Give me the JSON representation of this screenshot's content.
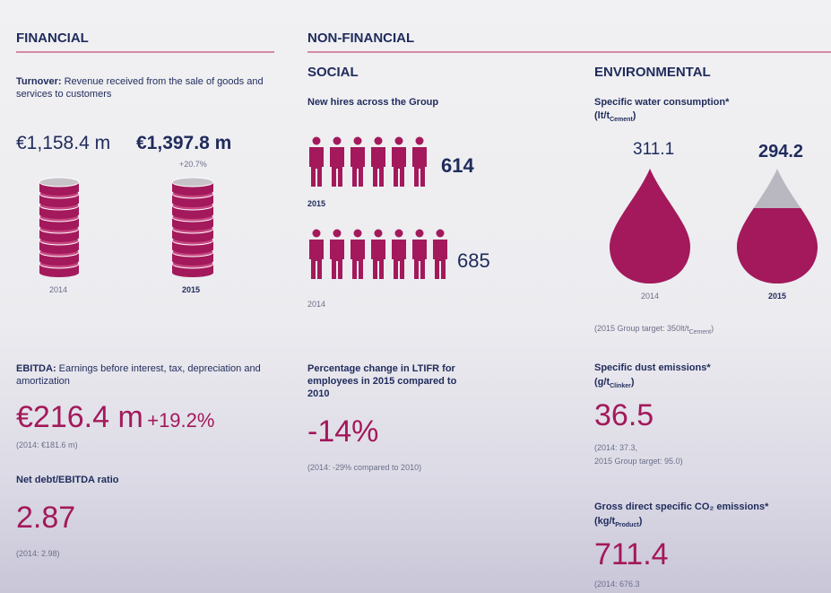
{
  "financial": {
    "heading": "FINANCIAL",
    "turnover": {
      "label": "Turnover:",
      "description": "Revenue received from the sale of goods and services to customers",
      "value_2014": "€1,158.4 m",
      "value_2015": "€1,397.8 m",
      "change": "+20.7%",
      "year_2014": "2014",
      "year_2015": "2015"
    },
    "ebitda": {
      "label": "EBITDA:",
      "description": "Earnings before interest, tax, depreciation and amortization",
      "value": "€216.4 m",
      "change": "+19.2%",
      "note": "(2014: €181.6 m)"
    },
    "net_debt": {
      "label": "Net debt/EBITDA ratio",
      "value": "2.87",
      "note": "(2014: 2.98)"
    }
  },
  "non_financial": {
    "heading": "NON-FINANCIAL",
    "social": {
      "heading": "SOCIAL",
      "hires_label": "New hires across the Group",
      "hires_2015": "614",
      "year_2015": "2015",
      "hires_2014": "685",
      "year_2014": "2014",
      "ltifr_label": "Percentage change in LTIFR for employees in 2015 compared to 2010",
      "ltifr_value": "-14%",
      "ltifr_note": "(2014: -29% compared to 2010)"
    },
    "environmental": {
      "heading": "ENVIRONMENTAL",
      "water_label": "Specific water consumption*",
      "water_unit": {
        "open": "(lt/t",
        "sub": "Cement",
        "close": ")"
      },
      "water_2014": "311.1",
      "water_2015": "294.2",
      "year_2014": "2014",
      "year_2015": "2015",
      "water_target": {
        "open": "(2015 Group target: 350lt/t",
        "sub": "Cement",
        "close": ")"
      },
      "dust_label": "Specific dust emissions*",
      "dust_unit": {
        "open": "(g/t",
        "sub": "Clinker",
        "close": ")"
      },
      "dust_value": "36.5",
      "dust_note_1": "(2014: 37.3,",
      "dust_note_2": "2015 Group target: 95.0)",
      "co2_label": "Gross direct specific CO₂ emissions*",
      "co2_unit": {
        "open": "(kg/t",
        "sub": "Product",
        "close": ")"
      },
      "co2_value": "711.4",
      "co2_note": "(2014: 676.3"
    }
  }
}
